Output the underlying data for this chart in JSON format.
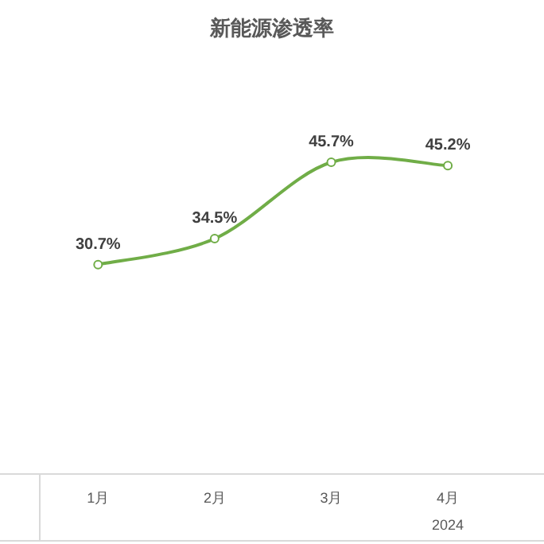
{
  "chart_data": {
    "type": "line",
    "title": "新能源渗透率",
    "xlabel": "2024",
    "categories": [
      "1月",
      "2月",
      "3月",
      "4月"
    ],
    "series": [
      {
        "color": "#70ad47",
        "values": [
          30.7,
          34.5,
          45.7,
          45.2
        ],
        "value_labels": [
          "30.7%",
          "34.5%",
          "45.7%",
          "45.2%"
        ]
      }
    ],
    "tick_labels": "x",
    "marker": "circle",
    "line_style": "solid"
  }
}
